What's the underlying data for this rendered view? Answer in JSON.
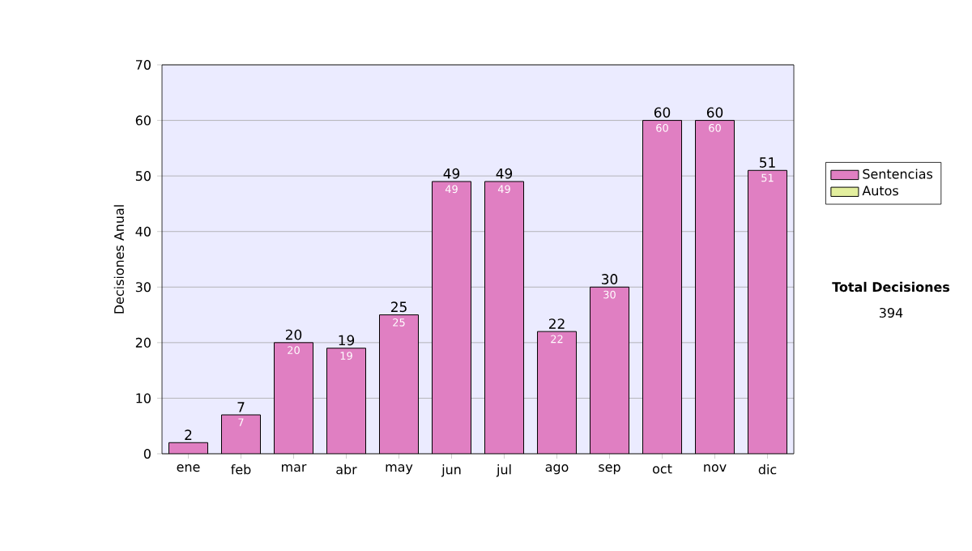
{
  "chart_data": {
    "type": "bar",
    "stacked": true,
    "ylabel": "Decisiones Anual",
    "categories": [
      "ene",
      "feb",
      "mar",
      "abr",
      "may",
      "jun",
      "jul",
      "ago",
      "sep",
      "oct",
      "nov",
      "dic"
    ],
    "series": [
      {
        "name": "Sentencias",
        "color": "#e07fc2",
        "values": [
          2,
          7,
          20,
          19,
          25,
          49,
          49,
          22,
          30,
          60,
          60,
          51
        ],
        "value_labels": [
          null,
          "7",
          "20",
          "19",
          "25",
          "49",
          "49",
          "22",
          "30",
          "60",
          "60",
          "51"
        ]
      },
      {
        "name": "Autos",
        "color": "#e3ef9e",
        "values": [
          0,
          0,
          0,
          0,
          0,
          0,
          0,
          0,
          0,
          0,
          0,
          0
        ]
      }
    ],
    "totals": [
      "2",
      "7",
      "20",
      "19",
      "25",
      "49",
      "49",
      "22",
      "30",
      "60",
      "60",
      "51"
    ],
    "ylim": [
      0,
      70
    ],
    "yticks": [
      0,
      10,
      20,
      30,
      40,
      50,
      60,
      70
    ],
    "grid": "y",
    "legend": "right",
    "annotations": [
      "Total Decisiones",
      "394"
    ]
  }
}
